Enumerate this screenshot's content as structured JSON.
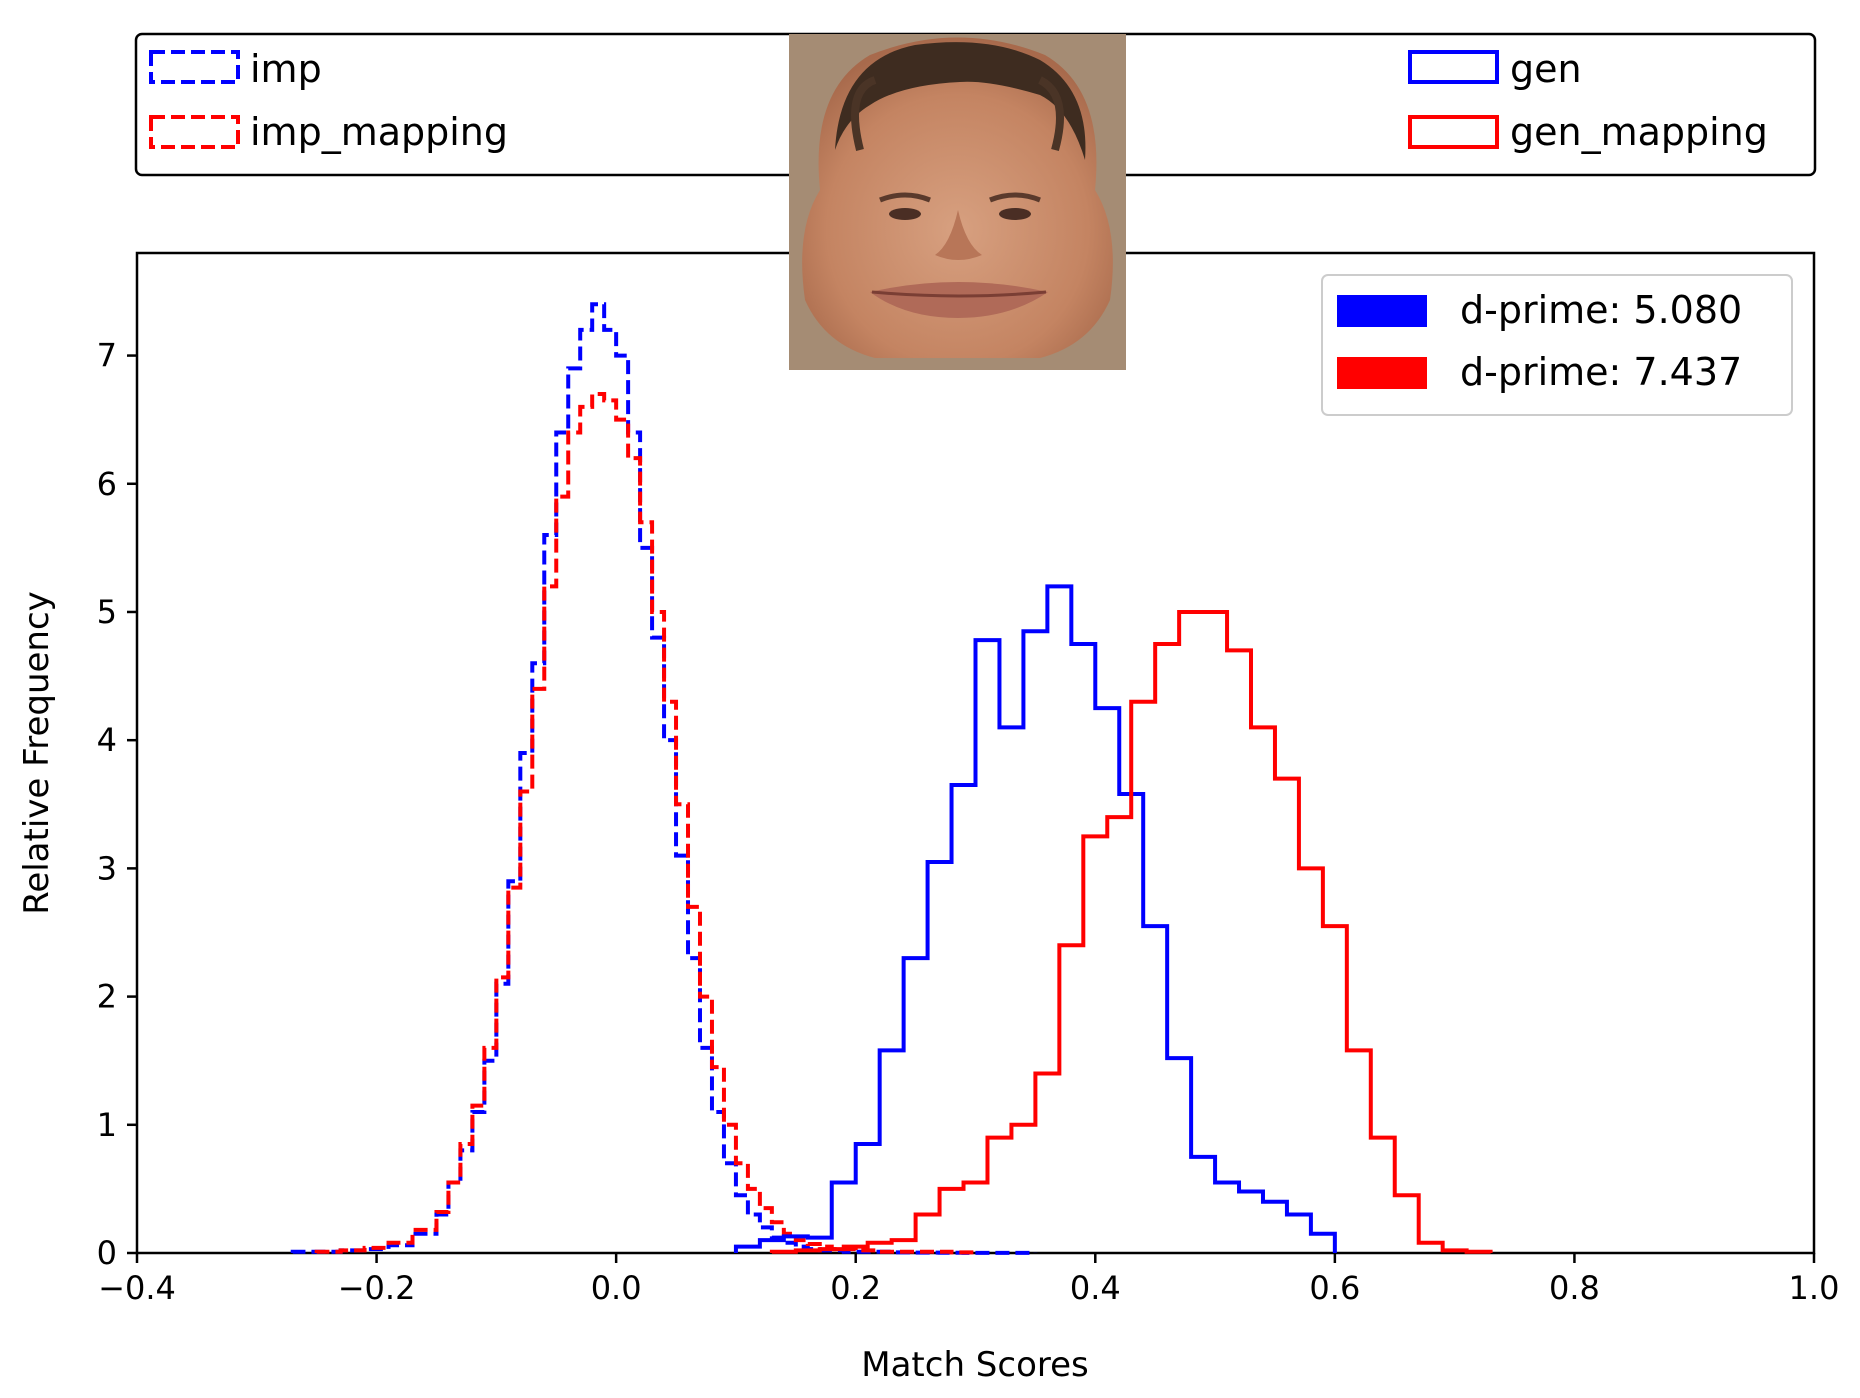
{
  "chart_data": {
    "type": "histogram",
    "xlabel": "Match Scores",
    "ylabel": "Relative Frequency",
    "xlim": [
      -0.4,
      1.0
    ],
    "ylim": [
      0,
      7.8
    ],
    "xticks": [
      -0.4,
      -0.2,
      0.0,
      0.2,
      0.4,
      0.6,
      0.8,
      1.0
    ],
    "xtick_labels": [
      "−0.4",
      "−0.2",
      "0.0",
      "0.2",
      "0.4",
      "0.6",
      "0.8",
      "1.0"
    ],
    "yticks": [
      0,
      1,
      2,
      3,
      4,
      5,
      6,
      7
    ],
    "ytick_labels": [
      "0",
      "1",
      "2",
      "3",
      "4",
      "5",
      "6",
      "7"
    ],
    "grid": false,
    "series": [
      {
        "name": "imp",
        "color": "#0000ff",
        "style": "dashed",
        "edges": [
          -0.27,
          -0.25,
          -0.23,
          -0.21,
          -0.19,
          -0.17,
          -0.15,
          -0.14,
          -0.13,
          -0.12,
          -0.11,
          -0.1,
          -0.09,
          -0.08,
          -0.07,
          -0.06,
          -0.05,
          -0.04,
          -0.03,
          -0.02,
          -0.01,
          0.0,
          0.01,
          0.02,
          0.03,
          0.04,
          0.05,
          0.06,
          0.07,
          0.08,
          0.09,
          0.1,
          0.11,
          0.12,
          0.13,
          0.14,
          0.15,
          0.16,
          0.17,
          0.19,
          0.21,
          0.23,
          0.25,
          0.27,
          0.29,
          0.31,
          0.33,
          0.35
        ],
        "values": [
          0.01,
          0.01,
          0.02,
          0.03,
          0.06,
          0.15,
          0.3,
          0.55,
          0.8,
          1.1,
          1.5,
          2.1,
          2.9,
          3.9,
          4.6,
          5.6,
          6.4,
          6.9,
          7.2,
          7.4,
          7.2,
          7.0,
          6.4,
          5.5,
          4.8,
          4.0,
          3.1,
          2.3,
          1.6,
          1.1,
          0.7,
          0.45,
          0.3,
          0.2,
          0.12,
          0.08,
          0.05,
          0.03,
          0.02,
          0.01,
          0.01,
          0.005,
          0.003,
          0.002,
          0.001,
          0.001,
          0.001
        ]
      },
      {
        "name": "imp_mapping",
        "color": "#ff0000",
        "style": "dashed",
        "edges": [
          -0.25,
          -0.23,
          -0.21,
          -0.19,
          -0.17,
          -0.15,
          -0.14,
          -0.13,
          -0.12,
          -0.11,
          -0.1,
          -0.09,
          -0.08,
          -0.07,
          -0.06,
          -0.05,
          -0.04,
          -0.03,
          -0.02,
          -0.01,
          0.0,
          0.01,
          0.02,
          0.03,
          0.04,
          0.05,
          0.06,
          0.07,
          0.08,
          0.09,
          0.1,
          0.11,
          0.12,
          0.13,
          0.14,
          0.15,
          0.16,
          0.17,
          0.18,
          0.2,
          0.22,
          0.24,
          0.26,
          0.28,
          0.3
        ],
        "values": [
          0.01,
          0.02,
          0.04,
          0.08,
          0.18,
          0.32,
          0.55,
          0.85,
          1.15,
          1.6,
          2.15,
          2.85,
          3.6,
          4.4,
          5.2,
          5.9,
          6.4,
          6.6,
          6.7,
          6.65,
          6.5,
          6.2,
          5.7,
          5.0,
          4.3,
          3.5,
          2.7,
          2.0,
          1.45,
          1.0,
          0.7,
          0.5,
          0.35,
          0.24,
          0.15,
          0.1,
          0.07,
          0.05,
          0.03,
          0.02,
          0.01,
          0.01,
          0.01,
          0.005
        ]
      },
      {
        "name": "gen",
        "color": "#0000ff",
        "style": "solid",
        "edges": [
          0.1,
          0.12,
          0.14,
          0.16,
          0.18,
          0.2,
          0.22,
          0.24,
          0.26,
          0.28,
          0.3,
          0.32,
          0.34,
          0.36,
          0.38,
          0.4,
          0.42,
          0.44,
          0.46,
          0.48,
          0.5,
          0.52,
          0.54,
          0.56,
          0.58,
          0.6
        ],
        "values": [
          0.05,
          0.1,
          0.13,
          0.12,
          0.55,
          0.85,
          1.58,
          2.3,
          3.05,
          3.65,
          4.78,
          4.1,
          4.85,
          5.2,
          4.75,
          4.25,
          3.58,
          2.55,
          1.52,
          0.75,
          0.55,
          0.48,
          0.4,
          0.3,
          0.15
        ]
      },
      {
        "name": "gen_mapping",
        "color": "#ff0000",
        "style": "solid",
        "edges": [
          0.13,
          0.15,
          0.17,
          0.19,
          0.21,
          0.23,
          0.25,
          0.27,
          0.29,
          0.31,
          0.33,
          0.35,
          0.37,
          0.39,
          0.41,
          0.43,
          0.45,
          0.47,
          0.49,
          0.51,
          0.53,
          0.55,
          0.57,
          0.59,
          0.61,
          0.63,
          0.65,
          0.67,
          0.69,
          0.71,
          0.73
        ],
        "values": [
          0.01,
          0.02,
          0.03,
          0.05,
          0.08,
          0.1,
          0.3,
          0.5,
          0.55,
          0.9,
          1.0,
          1.4,
          2.4,
          3.25,
          3.4,
          4.3,
          4.75,
          5.0,
          5.0,
          4.7,
          4.1,
          3.7,
          3.0,
          2.55,
          1.58,
          0.9,
          0.45,
          0.08,
          0.02,
          0.01
        ]
      }
    ],
    "legend_top": {
      "placement": "above-axes",
      "entries": [
        {
          "label": "imp",
          "color": "#0000ff",
          "style": "dashed"
        },
        {
          "label": "imp_mapping",
          "color": "#ff0000",
          "style": "dashed"
        },
        {
          "label": "gen",
          "color": "#0000ff",
          "style": "solid"
        },
        {
          "label": "gen_mapping",
          "color": "#ff0000",
          "style": "solid"
        }
      ]
    },
    "legend_dprime": {
      "placement": "top-right",
      "entries": [
        {
          "label": "d-prime: 5.080",
          "color": "#0000ff"
        },
        {
          "label": "d-prime: 7.437",
          "color": "#ff0000"
        }
      ]
    },
    "inset_image": {
      "description_icon": "face-photo-icon",
      "colors": {
        "skin": "#c89070",
        "bg": "#a89078",
        "hair": "#3a2a1e",
        "lip": "#a85a4e"
      }
    }
  }
}
